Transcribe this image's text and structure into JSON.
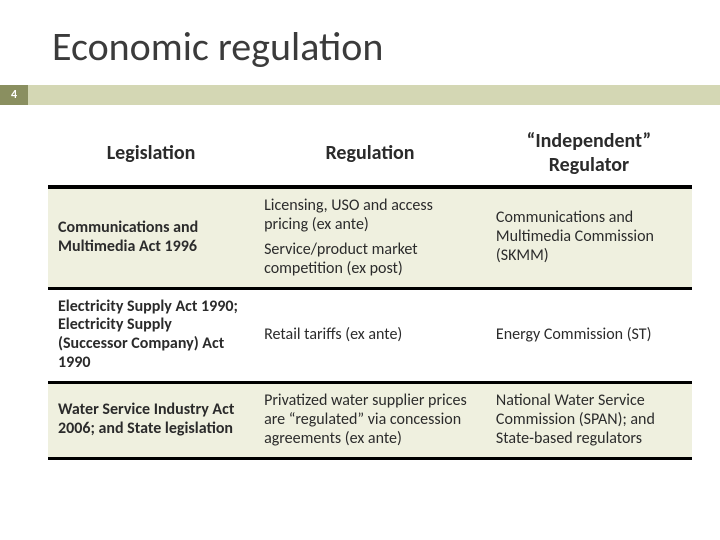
{
  "title": "Economic regulation",
  "page_number": "4",
  "colors": {
    "badge_bg": "#8a8f60",
    "bar_bg": "#d4d7b4",
    "row_band": "#eff0df",
    "rule": "#000000"
  },
  "table": {
    "headers": {
      "col1": "Legislation",
      "col2": "Regulation",
      "col3": "“Independent” Regulator"
    },
    "rows": [
      {
        "legislation": "Communications and Multimedia Act 1996",
        "regulation_p1": "Licensing, USO and access pricing (ex ante)",
        "regulation_p2": "Service/product market competition (ex post)",
        "regulator": "Communications and Multimedia Commission (SKMM)"
      },
      {
        "legislation": "Electricity Supply Act 1990; Electricity Supply (Successor Company) Act 1990",
        "regulation_p1": "Retail tariffs (ex ante)",
        "regulation_p2": "",
        "regulator": "Energy Commission (ST)"
      },
      {
        "legislation": "Water Service Industry Act 2006; and State legislation",
        "regulation_p1": "Privatized water supplier prices are “regulated” via concession agreements (ex ante)",
        "regulation_p2": "",
        "regulator": "National Water Service Commission (SPAN); and State-based regulators"
      }
    ]
  }
}
